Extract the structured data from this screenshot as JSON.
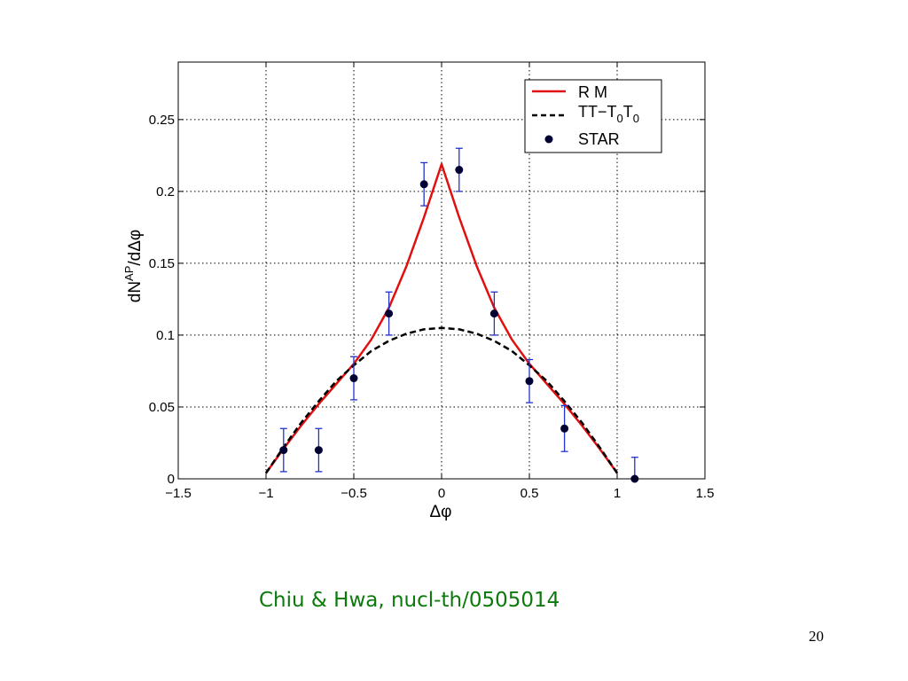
{
  "chart_data": {
    "type": "line",
    "xlim": [
      -1.5,
      1.5
    ],
    "ylim": [
      0,
      0.29
    ],
    "x_ticks": [
      -1.5,
      -1,
      -0.5,
      0,
      0.5,
      1,
      1.5
    ],
    "x_tick_labels": [
      "−1.5",
      "−1",
      "−0.5",
      "0",
      "0.5",
      "1",
      "1.5"
    ],
    "y_ticks": [
      0,
      0.05,
      0.1,
      0.15,
      0.2,
      0.25
    ],
    "y_tick_labels": [
      "0",
      "0.05",
      "0.1",
      "0.15",
      "0.2",
      "0.25"
    ],
    "xlabel": "Δφ",
    "ylabel": "dN",
    "ylabel_sup": "AP",
    "ylabel_tail": "/dΔφ",
    "grid": true,
    "legend_position": "top-right",
    "series": [
      {
        "name": "R M",
        "kind": "line",
        "color": "#e01010",
        "x": [
          -1.0,
          -0.9,
          -0.8,
          -0.7,
          -0.6,
          -0.5,
          -0.4,
          -0.3,
          -0.2,
          -0.1,
          0.0,
          0.1,
          0.2,
          0.3,
          0.4,
          0.5,
          0.6,
          0.7,
          0.8,
          0.9,
          1.0
        ],
        "y": [
          0.004,
          0.021,
          0.037,
          0.052,
          0.066,
          0.08,
          0.097,
          0.119,
          0.148,
          0.182,
          0.219,
          0.182,
          0.148,
          0.119,
          0.097,
          0.08,
          0.066,
          0.052,
          0.037,
          0.021,
          0.004
        ]
      },
      {
        "name": "TT−T0T0",
        "legend_parts": [
          "TT−T",
          "0",
          "T",
          "0"
        ],
        "kind": "dashed",
        "color": "#000000",
        "x": [
          -1.0,
          -0.9,
          -0.8,
          -0.7,
          -0.6,
          -0.5,
          -0.4,
          -0.3,
          -0.2,
          -0.1,
          0.0,
          0.1,
          0.2,
          0.3,
          0.4,
          0.5,
          0.6,
          0.7,
          0.8,
          0.9,
          1.0
        ],
        "y": [
          0.004,
          0.022,
          0.039,
          0.054,
          0.068,
          0.079,
          0.089,
          0.096,
          0.101,
          0.104,
          0.105,
          0.104,
          0.101,
          0.096,
          0.089,
          0.079,
          0.068,
          0.054,
          0.039,
          0.022,
          0.004
        ]
      },
      {
        "name": "STAR",
        "kind": "points",
        "color": "#000033",
        "error_color": "#2233cc",
        "x": [
          -0.9,
          -0.7,
          -0.5,
          -0.3,
          -0.1,
          0.1,
          0.3,
          0.5,
          0.7,
          1.1
        ],
        "y": [
          0.02,
          0.02,
          0.07,
          0.115,
          0.205,
          0.215,
          0.115,
          0.068,
          0.035,
          0.0
        ],
        "err": [
          0.015,
          0.015,
          0.015,
          0.015,
          0.015,
          0.015,
          0.015,
          0.015,
          0.016,
          0.015
        ]
      }
    ]
  },
  "citation": "Chiu & Hwa, nucl-th/0505014",
  "slide_number": "20"
}
